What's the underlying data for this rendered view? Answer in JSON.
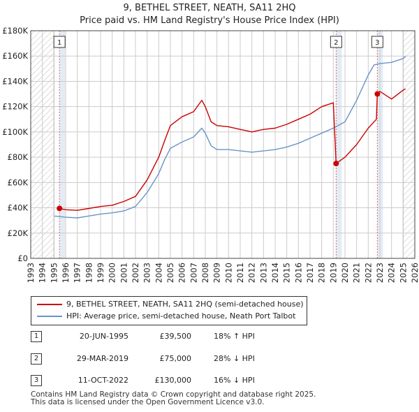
{
  "title_line1": "9, BETHEL STREET, NEATH, SA11 2HQ",
  "title_line2": "Price paid vs. HM Land Registry's House Price Index (HPI)",
  "legend": {
    "property": "9, BETHEL STREET, NEATH, SA11 2HQ (semi-detached house)",
    "hpi": "HPI: Average price, semi-detached house, Neath Port Talbot"
  },
  "transactions": [
    {
      "num": "1",
      "date": "20-JUN-1995",
      "price": "£39,500",
      "hpi": "18% ↑ HPI"
    },
    {
      "num": "2",
      "date": "29-MAR-2019",
      "price": "£75,000",
      "hpi": "28% ↓ HPI"
    },
    {
      "num": "3",
      "date": "11-OCT-2022",
      "price": "£130,000",
      "hpi": "16% ↓ HPI"
    }
  ],
  "footer": {
    "line1": "Contains HM Land Registry data © Crown copyright and database right 2025.",
    "line2": "This data is licensed under the Open Government Licence v3.0."
  },
  "colors": {
    "property": "#cc0000",
    "hpi": "#6b93c8",
    "grid": "#cccccc",
    "shade": "#dce6f2",
    "vline": "#dd6666"
  },
  "chart_data": {
    "type": "line",
    "xlim": [
      1993,
      2026
    ],
    "ylim": [
      0,
      180000
    ],
    "x_ticks": [
      1993,
      1994,
      1995,
      1996,
      1997,
      1998,
      1999,
      2000,
      2001,
      2002,
      2003,
      2004,
      2005,
      2006,
      2007,
      2008,
      2009,
      2010,
      2011,
      2012,
      2013,
      2014,
      2015,
      2016,
      2017,
      2018,
      2019,
      2020,
      2021,
      2022,
      2023,
      2024,
      2025,
      2026
    ],
    "y_ticks": [
      0,
      20000,
      40000,
      60000,
      80000,
      100000,
      120000,
      140000,
      160000,
      180000
    ],
    "y_tick_labels": [
      "£0",
      "£20K",
      "£40K",
      "£60K",
      "£80K",
      "£100K",
      "£120K",
      "£140K",
      "£160K",
      "£180K"
    ],
    "hatched_ranges": [
      [
        1993,
        1995.0
      ],
      [
        2025.0,
        2026
      ]
    ],
    "shaded_ranges": [
      [
        1995.47,
        1995.95
      ],
      [
        2019.24,
        2019.72
      ],
      [
        2022.78,
        2023.26
      ]
    ],
    "markers": [
      {
        "label": "1",
        "x": 1995.47,
        "y": 39500
      },
      {
        "label": "2",
        "x": 2019.24,
        "y": 75000
      },
      {
        "label": "3",
        "x": 2022.78,
        "y": 130000
      }
    ],
    "series": [
      {
        "name": "9, BETHEL STREET, NEATH, SA11 2HQ (semi-detached house)",
        "color": "#cc0000",
        "points": [
          [
            1995.47,
            39500
          ],
          [
            1996,
            38500
          ],
          [
            1997,
            38000
          ],
          [
            1998,
            39500
          ],
          [
            1999,
            41000
          ],
          [
            2000,
            42000
          ],
          [
            2001,
            45000
          ],
          [
            2002,
            49000
          ],
          [
            2003,
            62000
          ],
          [
            2004,
            80000
          ],
          [
            2004.5,
            93000
          ],
          [
            2005,
            105000
          ],
          [
            2006,
            112000
          ],
          [
            2007,
            116000
          ],
          [
            2007.7,
            125000
          ],
          [
            2008,
            120000
          ],
          [
            2008.5,
            108000
          ],
          [
            2009,
            105000
          ],
          [
            2010,
            104000
          ],
          [
            2011,
            102000
          ],
          [
            2012,
            100000
          ],
          [
            2013,
            102000
          ],
          [
            2014,
            103000
          ],
          [
            2015,
            106000
          ],
          [
            2016,
            110000
          ],
          [
            2017,
            114000
          ],
          [
            2018,
            120000
          ],
          [
            2019.0,
            123000
          ],
          [
            2019.24,
            75000
          ],
          [
            2020,
            80000
          ],
          [
            2021,
            90000
          ],
          [
            2022,
            103000
          ],
          [
            2022.7,
            110000
          ],
          [
            2022.78,
            130000
          ],
          [
            2023,
            132000
          ],
          [
            2024,
            126000
          ],
          [
            2025,
            133000
          ],
          [
            2025.2,
            134000
          ]
        ]
      },
      {
        "name": "HPI: Average price, semi-detached house, Neath Port Talbot",
        "color": "#6b93c8",
        "points": [
          [
            1995,
            33500
          ],
          [
            1996,
            32500
          ],
          [
            1997,
            32000
          ],
          [
            1998,
            33500
          ],
          [
            1999,
            35000
          ],
          [
            2000,
            36000
          ],
          [
            2001,
            37500
          ],
          [
            2002,
            41000
          ],
          [
            2003,
            52000
          ],
          [
            2004,
            67000
          ],
          [
            2004.5,
            78000
          ],
          [
            2005,
            87000
          ],
          [
            2006,
            92000
          ],
          [
            2007,
            96000
          ],
          [
            2007.7,
            103000
          ],
          [
            2008,
            99000
          ],
          [
            2008.5,
            89000
          ],
          [
            2009,
            86000
          ],
          [
            2010,
            86000
          ],
          [
            2011,
            85000
          ],
          [
            2012,
            84000
          ],
          [
            2013,
            85000
          ],
          [
            2014,
            86000
          ],
          [
            2015,
            88000
          ],
          [
            2016,
            91000
          ],
          [
            2017,
            95000
          ],
          [
            2018,
            99000
          ],
          [
            2019,
            103000
          ],
          [
            2020,
            108000
          ],
          [
            2021,
            125000
          ],
          [
            2022,
            145000
          ],
          [
            2022.5,
            153000
          ],
          [
            2023,
            154000
          ],
          [
            2024,
            155000
          ],
          [
            2025,
            158000
          ],
          [
            2025.2,
            160000
          ]
        ]
      }
    ]
  }
}
